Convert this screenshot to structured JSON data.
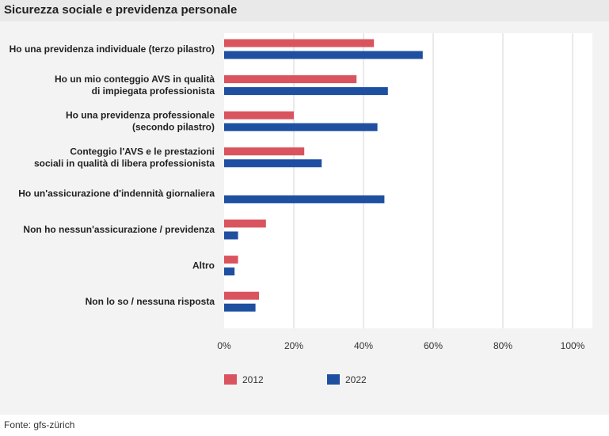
{
  "title": "Sicurezza sociale e previdenza personale",
  "source": "Fonte: gfs-zürich",
  "chart_data": {
    "type": "bar",
    "orientation": "horizontal",
    "categories": [
      [
        "Ho una previdenza individuale (terzo pilastro)"
      ],
      [
        "Ho un mio conteggio AVS in qualità",
        "di impiegata professionista"
      ],
      [
        "Ho una previdenza professionale",
        "(secondo pilastro)"
      ],
      [
        "Conteggio l'AVS e le prestazioni",
        "sociali in qualità di libera professionista"
      ],
      [
        "Ho un'assicurazione d'indennità giornaliera"
      ],
      [
        "Non ho nessun'assicurazione / previdenza"
      ],
      [
        "Altro"
      ],
      [
        "Non lo so / nessuna risposta"
      ]
    ],
    "series": [
      {
        "name": "2012",
        "color": "#d9545e",
        "values": [
          43,
          38,
          20,
          23,
          null,
          12,
          4,
          10
        ]
      },
      {
        "name": "2022",
        "color": "#1f4fa0",
        "values": [
          57,
          47,
          44,
          28,
          46,
          4,
          3,
          9
        ]
      }
    ],
    "xlim": [
      0,
      100
    ],
    "xticks": [
      0,
      20,
      40,
      60,
      80,
      100
    ],
    "tick_suffix": "%",
    "grid": true,
    "legend": "bottom"
  }
}
